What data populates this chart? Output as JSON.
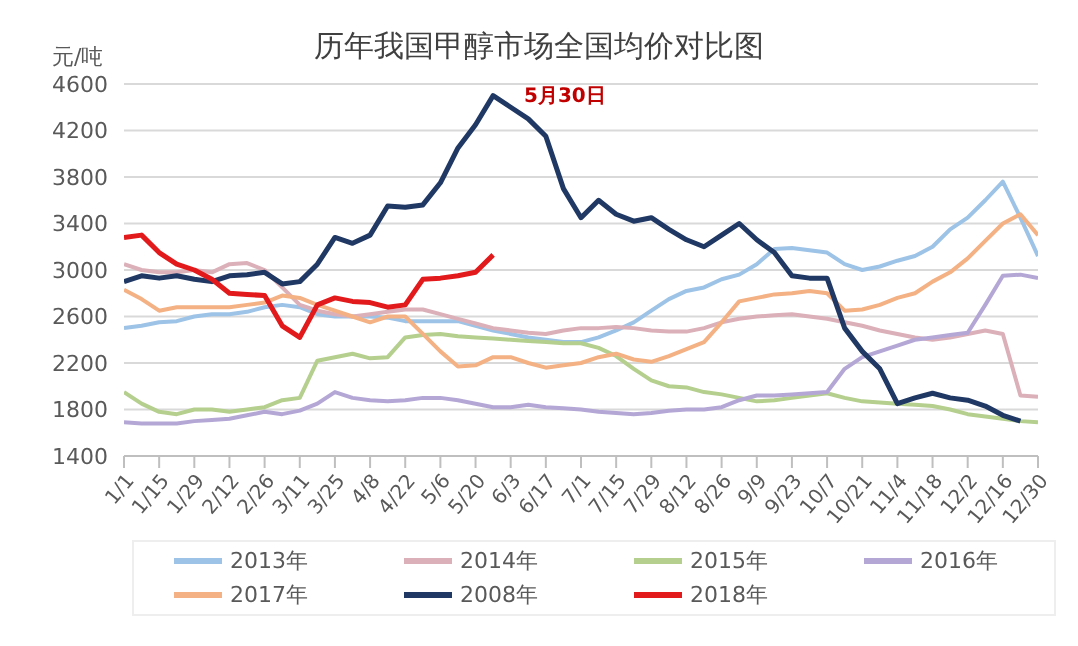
{
  "chart_data": {
    "type": "line",
    "title": "历年我国甲醇市场全国均价对比图",
    "ylabel": "元/吨",
    "annotations": [
      "5月30日"
    ],
    "categories": [
      "1/1",
      null,
      "1/15",
      null,
      "1/29",
      null,
      "2/12",
      null,
      "2/26",
      null,
      "3/11",
      null,
      "3/25",
      null,
      "4/8",
      null,
      "4/22",
      null,
      "5/6",
      null,
      "5/20",
      null,
      "6/3",
      null,
      "6/17",
      null,
      "7/1",
      null,
      "7/15",
      null,
      "7/29",
      null,
      "8/12",
      null,
      "8/26",
      null,
      "9/9",
      null,
      "9/23",
      null,
      "10/7",
      null,
      "10/21",
      null,
      "11/4",
      null,
      "11/18",
      null,
      "12/2",
      null,
      "12/16",
      null,
      "12/30"
    ],
    "series": [
      {
        "name": "2013年",
        "color": "#9dc3e6",
        "values": [
          2500,
          2520,
          2550,
          2560,
          2600,
          2620,
          2620,
          2640,
          2680,
          2700,
          2680,
          2620,
          2600,
          2600,
          2600,
          2590,
          2560,
          2560,
          2560,
          2560,
          2520,
          2480,
          2450,
          2420,
          2400,
          2380,
          2380,
          2420,
          2480,
          2550,
          2650,
          2750,
          2820,
          2850,
          2920,
          2960,
          3050,
          3180,
          3190,
          3170,
          3150,
          3050,
          3000,
          3030,
          3080,
          3120,
          3200,
          3350,
          3450,
          3600,
          3760,
          3450,
          3120
        ]
      },
      {
        "name": "2014年",
        "color": "#dcb0b8",
        "values": [
          3050,
          3000,
          2980,
          2980,
          3000,
          2980,
          3050,
          3060,
          3000,
          2850,
          2700,
          2650,
          2620,
          2600,
          2620,
          2640,
          2660,
          2660,
          2620,
          2580,
          2540,
          2500,
          2480,
          2460,
          2450,
          2480,
          2500,
          2500,
          2510,
          2500,
          2480,
          2470,
          2470,
          2500,
          2550,
          2580,
          2600,
          2610,
          2620,
          2600,
          2580,
          2550,
          2520,
          2480,
          2450,
          2420,
          2400,
          2420,
          2450,
          2480,
          2450,
          1920,
          1910
        ]
      },
      {
        "name": "2015年",
        "color": "#b5cf8e",
        "values": [
          1950,
          1850,
          1780,
          1760,
          1800,
          1800,
          1780,
          1800,
          1820,
          1880,
          1900,
          2220,
          2250,
          2280,
          2240,
          2250,
          2420,
          2440,
          2450,
          2430,
          2420,
          2410,
          2400,
          2390,
          2380,
          2370,
          2370,
          2330,
          2260,
          2150,
          2050,
          2000,
          1990,
          1950,
          1930,
          1900,
          1870,
          1880,
          1900,
          1920,
          1940,
          1900,
          1870,
          1860,
          1850,
          1840,
          1830,
          1800,
          1760,
          1740,
          1720,
          1700,
          1690
        ]
      },
      {
        "name": "2016年",
        "color": "#b4a7d6",
        "values": [
          1690,
          1680,
          1680,
          1680,
          1700,
          1710,
          1720,
          1750,
          1780,
          1760,
          1790,
          1850,
          1950,
          1900,
          1880,
          1870,
          1880,
          1900,
          1900,
          1880,
          1850,
          1820,
          1820,
          1840,
          1820,
          1810,
          1800,
          1780,
          1770,
          1760,
          1770,
          1790,
          1800,
          1800,
          1820,
          1880,
          1920,
          1920,
          1930,
          1940,
          1950,
          2150,
          2250,
          2300,
          2350,
          2400,
          2420,
          2440,
          2460,
          2700,
          2950,
          2960,
          2930
        ]
      },
      {
        "name": "2017年",
        "color": "#f4b183",
        "values": [
          2830,
          2750,
          2650,
          2680,
          2680,
          2680,
          2680,
          2700,
          2720,
          2780,
          2760,
          2700,
          2650,
          2600,
          2550,
          2600,
          2600,
          2450,
          2300,
          2170,
          2180,
          2250,
          2250,
          2200,
          2160,
          2180,
          2200,
          2250,
          2280,
          2230,
          2210,
          2260,
          2320,
          2380,
          2550,
          2730,
          2760,
          2790,
          2800,
          2820,
          2800,
          2650,
          2660,
          2700,
          2760,
          2800,
          2900,
          2980,
          3100,
          3250,
          3400,
          3480,
          3300
        ]
      },
      {
        "name": "2008年",
        "color": "#1f3864",
        "values": [
          2900,
          2950,
          2930,
          2950,
          2920,
          2900,
          2950,
          2960,
          2980,
          2880,
          2900,
          3050,
          3280,
          3230,
          3300,
          3550,
          3540,
          3560,
          3750,
          4050,
          4250,
          4500,
          4400,
          4300,
          4150,
          3700,
          3450,
          3600,
          3480,
          3420,
          3450,
          3350,
          3260,
          3200,
          3300,
          3400,
          3260,
          3150,
          2950,
          2930,
          2930,
          2500,
          2300,
          2150,
          1850,
          1900,
          1940,
          1900,
          1880,
          1830,
          1750,
          1700,
          null
        ]
      },
      {
        "name": "2018年",
        "color": "#e31a1c",
        "values": [
          3280,
          3300,
          3150,
          3050,
          3000,
          2920,
          2800,
          2790,
          2780,
          2520,
          2420,
          2700,
          2760,
          2730,
          2720,
          2680,
          2700,
          2920,
          2930,
          2950,
          2980,
          3130,
          null,
          null,
          null,
          null,
          null,
          null,
          null,
          null,
          null,
          null,
          null,
          null,
          null,
          null,
          null,
          null,
          null,
          null,
          null,
          null,
          null,
          null,
          null,
          null,
          null,
          null,
          null,
          null,
          null,
          null,
          null
        ]
      }
    ],
    "ylim": [
      1400,
      4600
    ],
    "yticks": [
      1400,
      1800,
      2200,
      2600,
      3000,
      3400,
      3800,
      4200,
      4600
    ],
    "grid": "y",
    "legend": "bottom",
    "marker": "none",
    "line_style": "solid"
  }
}
